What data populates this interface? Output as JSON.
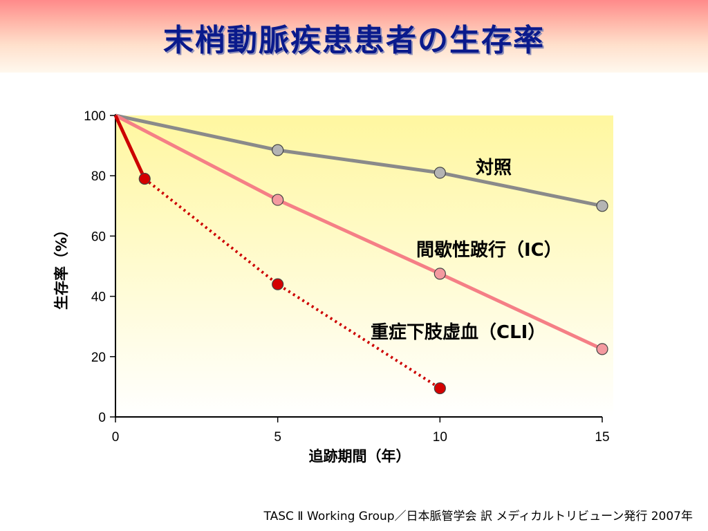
{
  "title": "末梢動脈疾患患者の生存率",
  "source": "TASC Ⅱ Working Group／日本脈管学会 訳 メディカルトリビューン発行 2007年",
  "colors": {
    "control": "#8a8a8a",
    "control_marker": "#b4b4b4",
    "ic": "#f57f86",
    "ic_marker": "#f49aa0",
    "cli": "#cc0000",
    "cli_marker": "#d40000",
    "plot_top": "#fff7a0",
    "plot_bottom": "#ffffff"
  },
  "chart_data": {
    "type": "line",
    "xlabel": "追跡期間（年）",
    "ylabel": "生存率（%）",
    "xlim": [
      0,
      15
    ],
    "ylim": [
      0,
      100
    ],
    "xticks": [
      0,
      5,
      10,
      15
    ],
    "yticks": [
      0,
      20,
      40,
      60,
      80,
      100
    ],
    "grid": false,
    "series": [
      {
        "name": "対照",
        "color_key": "control",
        "points": [
          [
            0,
            100
          ],
          [
            5,
            88.5
          ],
          [
            10,
            81
          ],
          [
            15,
            70
          ]
        ],
        "markers": [
          [
            5,
            88.5
          ],
          [
            10,
            81
          ],
          [
            15,
            70
          ]
        ],
        "style": "solid"
      },
      {
        "name": "間歇性跛行（IC）",
        "color_key": "ic",
        "points": [
          [
            0,
            100
          ],
          [
            5,
            72
          ],
          [
            10,
            47.5
          ],
          [
            15,
            22.5
          ]
        ],
        "markers": [
          [
            5,
            72
          ],
          [
            10,
            47.5
          ],
          [
            15,
            22.5
          ]
        ],
        "style": "solid"
      },
      {
        "name": "重症下肢虚血（CLI）",
        "color_key": "cli",
        "points": [
          [
            0,
            100
          ],
          [
            0.9,
            79
          ]
        ],
        "markers": [
          [
            0.9,
            79
          ]
        ],
        "style": "solid"
      },
      {
        "name": "重症下肢虚血（CLI）",
        "color_key": "cli",
        "points": [
          [
            0.9,
            79
          ],
          [
            5,
            44
          ],
          [
            10,
            9.5
          ]
        ],
        "markers": [
          [
            5,
            44
          ],
          [
            10,
            9.5
          ]
        ],
        "style": "dotted",
        "unlabeled": true
      }
    ]
  }
}
